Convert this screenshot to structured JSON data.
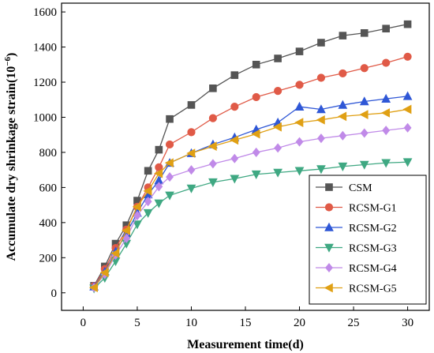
{
  "chart_data": {
    "type": "line",
    "xlabel": "Measurement time(d)",
    "ylabel": "Accumulate dry shrinkage strain(10",
    "ylabel_exp": "−6",
    "ylabel_close": ")",
    "xlim": [
      -2,
      32
    ],
    "ylim": [
      -100,
      1650
    ],
    "xticks": [
      0,
      5,
      10,
      15,
      20,
      25,
      30
    ],
    "yticks": [
      0,
      200,
      400,
      600,
      800,
      1000,
      1200,
      1400,
      1600
    ],
    "grid": false,
    "legend_position": "bottom-right",
    "x": [
      1,
      2,
      3,
      4,
      5,
      6,
      7,
      8,
      10,
      12,
      14,
      16,
      18,
      20,
      22,
      24,
      26,
      28,
      30
    ],
    "series": [
      {
        "name": "CSM",
        "marker": "square",
        "color": "#555555",
        "values": [
          40,
          150,
          280,
          385,
          525,
          695,
          815,
          990,
          1070,
          1165,
          1240,
          1300,
          1335,
          1375,
          1425,
          1465,
          1480,
          1505,
          1530
        ]
      },
      {
        "name": "RCSM-G1",
        "marker": "circle",
        "color": "#E05A47",
        "values": [
          38,
          135,
          255,
          360,
          490,
          600,
          715,
          845,
          915,
          995,
          1060,
          1115,
          1150,
          1185,
          1225,
          1250,
          1280,
          1310,
          1345
        ]
      },
      {
        "name": "RCSM-G2",
        "marker": "triangle-up",
        "color": "#2F57D6",
        "values": [
          35,
          120,
          235,
          340,
          455,
          560,
          640,
          740,
          795,
          845,
          885,
          930,
          970,
          1060,
          1045,
          1070,
          1090,
          1105,
          1120
        ]
      },
      {
        "name": "RCSM-G3",
        "marker": "triangle-down",
        "color": "#3FA882",
        "values": [
          25,
          85,
          180,
          280,
          390,
          455,
          510,
          555,
          595,
          630,
          650,
          675,
          685,
          695,
          705,
          720,
          730,
          740,
          745
        ]
      },
      {
        "name": "RCSM-G4",
        "marker": "diamond",
        "color": "#C08AE8",
        "values": [
          30,
          105,
          215,
          310,
          440,
          520,
          605,
          660,
          700,
          735,
          765,
          800,
          825,
          860,
          880,
          895,
          910,
          925,
          940
        ]
      },
      {
        "name": "RCSM-G5",
        "marker": "triangle-left",
        "color": "#E0A014",
        "values": [
          30,
          115,
          225,
          355,
          490,
          580,
          680,
          740,
          795,
          835,
          870,
          905,
          945,
          970,
          985,
          1005,
          1015,
          1025,
          1045
        ]
      }
    ]
  }
}
